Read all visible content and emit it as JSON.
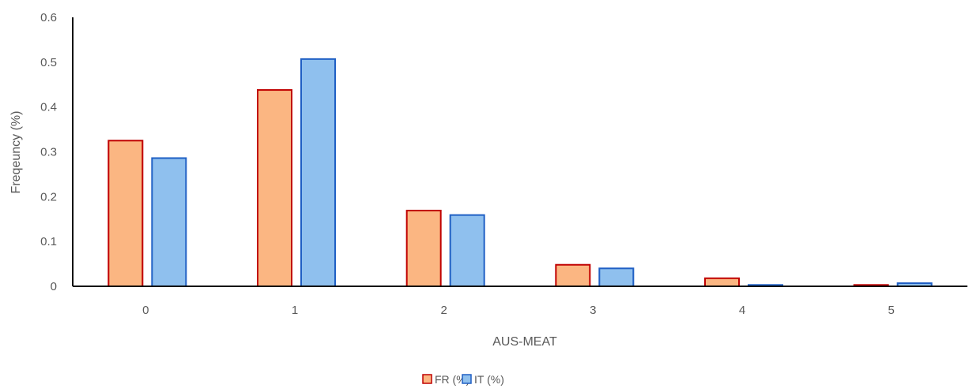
{
  "chart_data": {
    "type": "bar",
    "title": "",
    "xlabel": "AUS-MEAT",
    "ylabel": "Freqeuncy (%)",
    "categories": [
      "0",
      "1",
      "2",
      "3",
      "4",
      "5"
    ],
    "ylim": [
      0,
      0.6
    ],
    "yticks": [
      "0",
      "0.1",
      "0.2",
      "0.3",
      "0.4",
      "0.5",
      "0.6"
    ],
    "grid": false,
    "legend_position": "bottom",
    "series": [
      {
        "name": "FR (%)",
        "values": [
          0.325,
          0.438,
          0.169,
          0.048,
          0.018,
          0.003
        ],
        "fill": "#FBB682",
        "stroke": "#C00000"
      },
      {
        "name": "IT (%)",
        "values": [
          0.286,
          0.507,
          0.159,
          0.04,
          0.003,
          0.007
        ],
        "fill": "#8FC0EE",
        "stroke": "#1F5FC4"
      }
    ]
  }
}
